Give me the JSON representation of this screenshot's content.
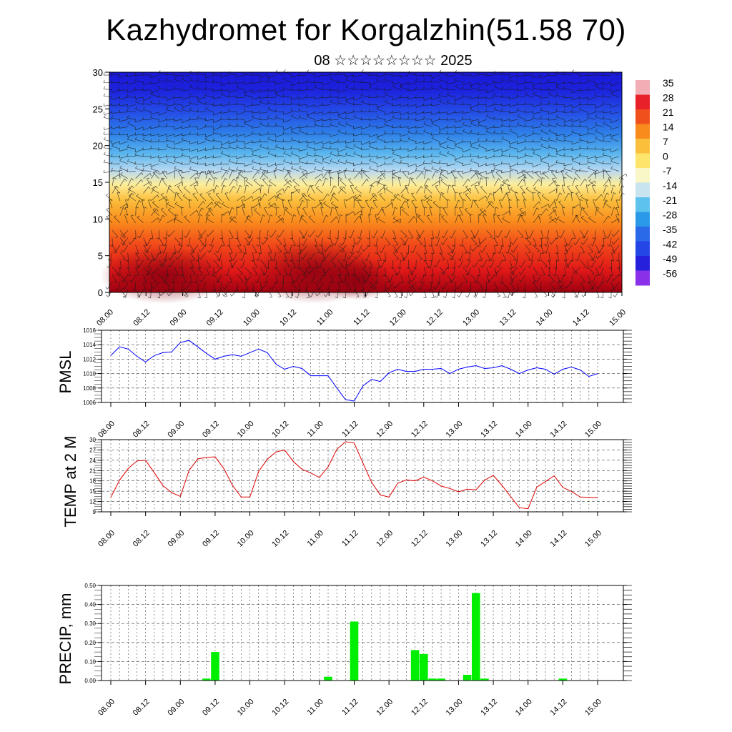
{
  "title": "Kazhydromet for Korgalzhin(51.58 70)",
  "subtitle": "08 ☆☆☆☆☆☆☆☆ 2025",
  "x_tick_labels": [
    "08.00",
    "08.12",
    "09.00",
    "09.12",
    "10.00",
    "10.12",
    "11.00",
    "11.12",
    "12.00",
    "12.12",
    "13.00",
    "13.12",
    "14.00",
    "14.12",
    "15.00"
  ],
  "colorbar": {
    "labels": [
      "35",
      "28",
      "21",
      "14",
      "7",
      "0",
      "-7",
      "-14",
      "-21",
      "-28",
      "-35",
      "-42",
      "-49",
      "-56"
    ],
    "colors": [
      "#f2aeb4",
      "#e8202a",
      "#f0501c",
      "#f98a1c",
      "#fbbf3c",
      "#fde46a",
      "#f9f6c8",
      "#c8e4f0",
      "#5ec2ee",
      "#2a9ae8",
      "#2a6ae8",
      "#2446e6",
      "#2620dc",
      "#8a30e8"
    ]
  },
  "chart_data": [
    {
      "type": "heatmap",
      "title": "",
      "ylabel": "",
      "ylim": [
        0,
        30
      ],
      "yticks": [
        0,
        5,
        10,
        15,
        20,
        25,
        30
      ],
      "x": [
        "08.00",
        "08.12",
        "09.00",
        "09.12",
        "10.00",
        "10.12",
        "11.00",
        "11.12",
        "12.00",
        "12.12",
        "13.00",
        "13.12",
        "14.00",
        "14.12",
        "15.00"
      ],
      "value_range": [
        -56,
        35
      ],
      "overlay": "wind barbs"
    },
    {
      "type": "line",
      "ylabel": "PMSL",
      "ylim": [
        1006,
        1016
      ],
      "yticks": [
        1006,
        1008,
        1010,
        1012,
        1014,
        1016
      ],
      "color": "#0000ff",
      "x": [
        "08.00",
        "08.03",
        "08.06",
        "08.09",
        "08.12",
        "08.15",
        "08.18",
        "08.21",
        "09.00",
        "09.03",
        "09.06",
        "09.09",
        "09.12",
        "09.15",
        "09.18",
        "09.21",
        "10.00",
        "10.03",
        "10.06",
        "10.09",
        "10.12",
        "10.15",
        "10.18",
        "10.21",
        "11.00",
        "11.03",
        "11.06",
        "11.09",
        "11.12",
        "11.15",
        "11.18",
        "11.21",
        "12.00",
        "12.03",
        "12.06",
        "12.09",
        "12.12",
        "12.15",
        "12.18",
        "12.21",
        "13.00",
        "13.03",
        "13.06",
        "13.09",
        "13.12",
        "13.15",
        "13.18",
        "13.21",
        "14.00",
        "14.03",
        "14.06",
        "14.09",
        "14.12",
        "14.15",
        "14.18",
        "14.21",
        "15.00"
      ],
      "values": [
        1012.5,
        1013.7,
        1013.4,
        1012.4,
        1011.6,
        1012.5,
        1012.9,
        1013.0,
        1014.3,
        1014.6,
        1013.7,
        1012.8,
        1012.0,
        1012.4,
        1012.6,
        1012.4,
        1012.9,
        1013.4,
        1012.9,
        1011.3,
        1010.6,
        1011.0,
        1010.7,
        1009.7,
        1009.7,
        1009.7,
        1008.0,
        1006.4,
        1006.2,
        1008.3,
        1009.2,
        1008.9,
        1010.1,
        1010.6,
        1010.3,
        1010.3,
        1010.6,
        1010.6,
        1010.7,
        1010.0,
        1010.6,
        1010.9,
        1011.1,
        1010.7,
        1010.8,
        1011.1,
        1010.6,
        1010.0,
        1010.5,
        1010.8,
        1010.6,
        1009.9,
        1010.6,
        1010.9,
        1010.5,
        1009.6,
        1010.0
      ]
    },
    {
      "type": "line",
      "ylabel": "TEMP at 2 M",
      "ylim": [
        9,
        30
      ],
      "yticks": [
        9,
        12,
        15,
        18,
        21,
        24,
        27,
        30
      ],
      "color": "#e00000",
      "x": [
        "08.00",
        "08.03",
        "08.06",
        "08.09",
        "08.12",
        "08.15",
        "08.18",
        "08.21",
        "09.00",
        "09.03",
        "09.06",
        "09.09",
        "09.12",
        "09.15",
        "09.18",
        "09.21",
        "10.00",
        "10.03",
        "10.06",
        "10.09",
        "10.12",
        "10.15",
        "10.18",
        "10.21",
        "11.00",
        "11.03",
        "11.06",
        "11.09",
        "11.12",
        "11.15",
        "11.18",
        "11.21",
        "12.00",
        "12.03",
        "12.06",
        "12.09",
        "12.12",
        "12.15",
        "12.18",
        "12.21",
        "13.00",
        "13.03",
        "13.06",
        "13.09",
        "13.12",
        "13.15",
        "13.18",
        "13.21",
        "14.00",
        "14.03",
        "14.06",
        "14.09",
        "14.12",
        "14.15",
        "14.18",
        "14.21",
        "15.00"
      ],
      "values": [
        13.2,
        18.2,
        21.6,
        23.8,
        24.0,
        20.4,
        16.6,
        14.6,
        13.5,
        21.0,
        24.4,
        24.8,
        25.0,
        21.6,
        16.7,
        13.3,
        13.3,
        20.7,
        24.3,
        26.4,
        27.0,
        23.6,
        21.4,
        20.3,
        19.0,
        22.1,
        27.2,
        29.4,
        29.0,
        23.2,
        17.6,
        13.9,
        13.3,
        17.3,
        18.3,
        18.0,
        19.1,
        18.0,
        16.5,
        15.8,
        14.8,
        15.6,
        15.4,
        18.2,
        19.6,
        16.7,
        13.4,
        10.2,
        9.9,
        16.2,
        17.8,
        19.5,
        16.1,
        14.9,
        13.3,
        13.2,
        13.1
      ]
    },
    {
      "type": "bar",
      "ylabel": "PRECIP, mm",
      "ylim": [
        0,
        0.5
      ],
      "yticks": [
        "0.00",
        "0.10",
        "0.20",
        "0.30",
        "0.40",
        "0.50"
      ],
      "color": "#00ee00",
      "x": [
        "08.00",
        "08.03",
        "08.06",
        "08.09",
        "08.12",
        "08.15",
        "08.18",
        "08.21",
        "09.00",
        "09.03",
        "09.06",
        "09.09",
        "09.12",
        "09.15",
        "09.18",
        "09.21",
        "10.00",
        "10.03",
        "10.06",
        "10.09",
        "10.12",
        "10.15",
        "10.18",
        "10.21",
        "11.00",
        "11.03",
        "11.06",
        "11.09",
        "11.12",
        "11.15",
        "11.18",
        "11.21",
        "12.00",
        "12.03",
        "12.06",
        "12.09",
        "12.12",
        "12.15",
        "12.18",
        "12.21",
        "13.00",
        "13.03",
        "13.06",
        "13.09",
        "13.12",
        "13.15",
        "13.18",
        "13.21",
        "14.00",
        "14.03",
        "14.06",
        "14.09",
        "14.12",
        "14.15",
        "14.18",
        "14.21",
        "15.00"
      ],
      "values": [
        0,
        0,
        0,
        0,
        0,
        0,
        0,
        0,
        0,
        0,
        0,
        0.01,
        0.15,
        0,
        0,
        0,
        0,
        0,
        0,
        0,
        0,
        0,
        0,
        0,
        0,
        0.02,
        0,
        0,
        0.31,
        0,
        0,
        0,
        0,
        0,
        0,
        0.16,
        0.14,
        0.01,
        0.01,
        0,
        0,
        0.03,
        0.46,
        0.01,
        0,
        0,
        0,
        0,
        0,
        0,
        0,
        0,
        0.01,
        0,
        0,
        0,
        0
      ]
    }
  ]
}
